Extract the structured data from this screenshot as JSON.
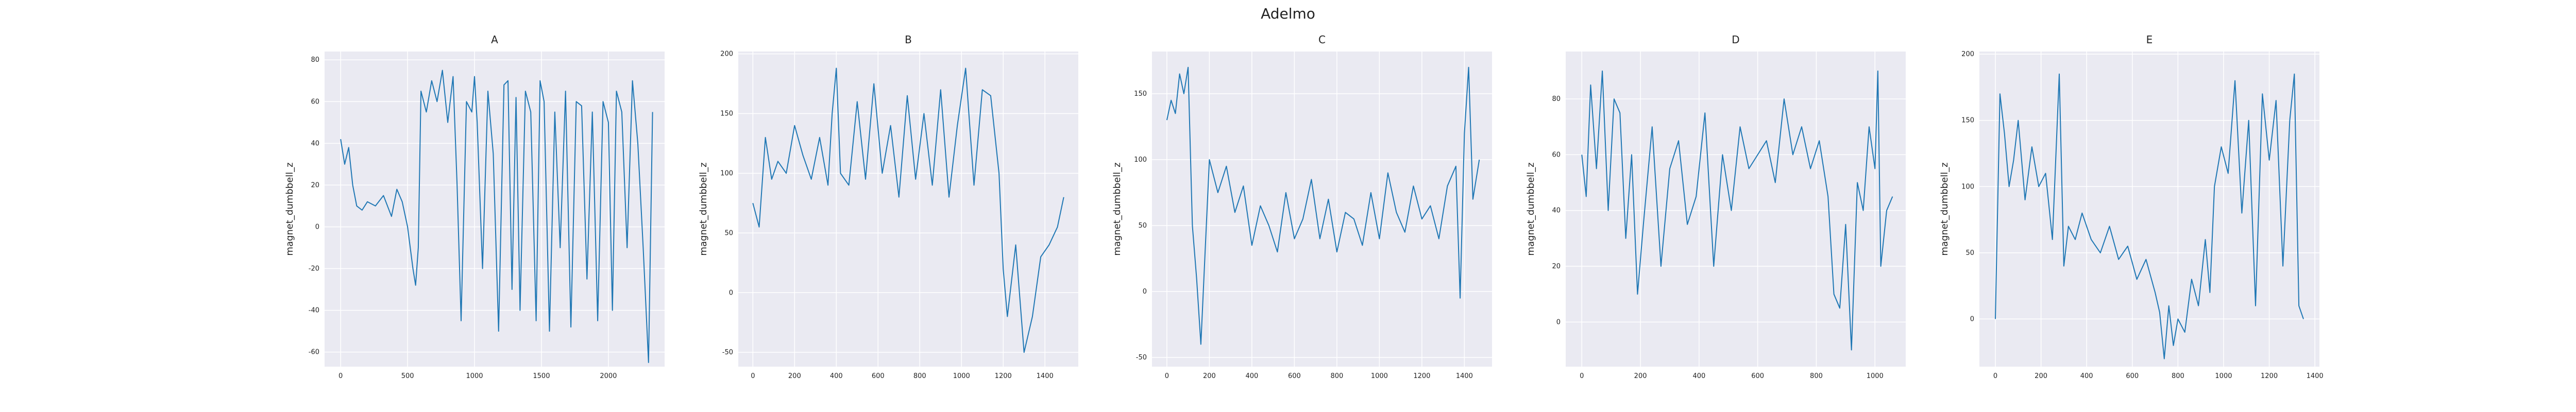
{
  "figure": {
    "suptitle": "Adelmo"
  },
  "style": {
    "plot_bg": "#eaeaf2",
    "grid": "#ffffff",
    "line": "#1f77b4"
  },
  "chart_data": [
    {
      "type": "line",
      "title": "A",
      "xlabel": "",
      "ylabel": "magnet_dumbbell_z",
      "xlim": [
        -120,
        2420
      ],
      "ylim": [
        -67,
        84
      ],
      "xticks": [
        0,
        500,
        1000,
        1500,
        2000
      ],
      "yticks": [
        -60,
        -40,
        -20,
        0,
        20,
        40,
        60,
        80
      ],
      "grid": true,
      "series": [
        {
          "x": [
            0,
            30,
            60,
            90,
            120,
            160,
            200,
            260,
            320,
            380,
            420,
            460,
            500,
            540,
            560,
            580,
            600,
            640,
            680,
            720,
            760,
            800,
            840,
            870,
            900,
            940,
            980,
            1000,
            1020,
            1060,
            1100,
            1140,
            1180,
            1220,
            1250,
            1280,
            1310,
            1340,
            1380,
            1420,
            1460,
            1490,
            1520,
            1560,
            1600,
            1640,
            1680,
            1720,
            1760,
            1800,
            1840,
            1880,
            1920,
            1960,
            2000,
            2030,
            2060,
            2100,
            2140,
            2180,
            2220,
            2260,
            2300,
            2330
          ],
          "y": [
            42,
            30,
            38,
            20,
            10,
            8,
            12,
            10,
            15,
            5,
            18,
            12,
            0,
            -20,
            -28,
            -10,
            65,
            55,
            70,
            60,
            75,
            50,
            72,
            20,
            -45,
            60,
            55,
            72,
            50,
            -20,
            65,
            35,
            -50,
            68,
            70,
            -30,
            62,
            -40,
            65,
            55,
            -45,
            70,
            60,
            -50,
            55,
            -10,
            65,
            -48,
            60,
            58,
            -25,
            55,
            -45,
            60,
            50,
            -40,
            65,
            55,
            -10,
            70,
            40,
            -10,
            -65,
            55
          ]
        }
      ]
    },
    {
      "type": "line",
      "title": "B",
      "xlabel": "",
      "ylabel": "magnet_dumbbell_z",
      "xlim": [
        -70,
        1560
      ],
      "ylim": [
        -62,
        202
      ],
      "xticks": [
        0,
        200,
        400,
        600,
        800,
        1000,
        1200,
        1400
      ],
      "yticks": [
        -50,
        0,
        50,
        100,
        150,
        200
      ],
      "grid": true,
      "series": [
        {
          "x": [
            0,
            30,
            60,
            90,
            120,
            160,
            200,
            240,
            280,
            320,
            360,
            380,
            400,
            420,
            460,
            500,
            540,
            580,
            620,
            660,
            700,
            740,
            780,
            820,
            860,
            900,
            940,
            980,
            1020,
            1060,
            1100,
            1140,
            1180,
            1200,
            1220,
            1260,
            1300,
            1340,
            1380,
            1420,
            1460,
            1490
          ],
          "y": [
            75,
            55,
            130,
            95,
            110,
            100,
            140,
            115,
            95,
            130,
            90,
            150,
            188,
            100,
            90,
            160,
            95,
            175,
            100,
            140,
            80,
            165,
            95,
            150,
            90,
            170,
            80,
            140,
            188,
            90,
            170,
            165,
            100,
            20,
            -20,
            40,
            -50,
            -20,
            30,
            40,
            55,
            80
          ]
        }
      ]
    },
    {
      "type": "line",
      "title": "C",
      "xlabel": "",
      "ylabel": "magnet_dumbbell_z",
      "xlim": [
        -70,
        1530
      ],
      "ylim": [
        -57,
        182
      ],
      "xticks": [
        0,
        200,
        400,
        600,
        800,
        1000,
        1200,
        1400
      ],
      "yticks": [
        -50,
        0,
        50,
        100,
        150
      ],
      "grid": true,
      "series": [
        {
          "x": [
            0,
            20,
            40,
            60,
            80,
            100,
            120,
            140,
            160,
            180,
            200,
            240,
            280,
            320,
            360,
            400,
            440,
            480,
            520,
            560,
            600,
            640,
            680,
            720,
            760,
            800,
            840,
            880,
            920,
            960,
            1000,
            1040,
            1080,
            1120,
            1160,
            1200,
            1240,
            1280,
            1320,
            1360,
            1380,
            1400,
            1420,
            1440,
            1470
          ],
          "y": [
            130,
            145,
            135,
            165,
            150,
            170,
            50,
            10,
            -40,
            30,
            100,
            75,
            95,
            60,
            80,
            35,
            65,
            50,
            30,
            75,
            40,
            55,
            85,
            40,
            70,
            30,
            60,
            55,
            35,
            75,
            40,
            90,
            60,
            45,
            80,
            55,
            65,
            40,
            80,
            95,
            -5,
            120,
            170,
            70,
            100
          ]
        }
      ]
    },
    {
      "type": "line",
      "title": "D",
      "xlabel": "",
      "ylabel": "magnet_dumbbell_z",
      "xlim": [
        -55,
        1105
      ],
      "ylim": [
        -16,
        97
      ],
      "xticks": [
        0,
        200,
        400,
        600,
        800,
        1000
      ],
      "yticks": [
        0,
        20,
        40,
        60,
        80
      ],
      "grid": true,
      "series": [
        {
          "x": [
            0,
            15,
            30,
            50,
            70,
            90,
            110,
            130,
            150,
            170,
            190,
            210,
            240,
            270,
            300,
            330,
            360,
            390,
            420,
            450,
            480,
            510,
            540,
            570,
            600,
            630,
            660,
            690,
            720,
            750,
            780,
            810,
            840,
            860,
            880,
            900,
            920,
            940,
            960,
            980,
            1000,
            1010,
            1020,
            1040,
            1060
          ],
          "y": [
            60,
            45,
            85,
            55,
            90,
            40,
            80,
            75,
            30,
            60,
            10,
            35,
            70,
            20,
            55,
            65,
            35,
            45,
            75,
            20,
            60,
            40,
            70,
            55,
            60,
            65,
            50,
            80,
            60,
            70,
            55,
            65,
            45,
            10,
            5,
            35,
            -10,
            50,
            40,
            70,
            55,
            90,
            20,
            40,
            45
          ]
        }
      ]
    },
    {
      "type": "line",
      "title": "E",
      "xlabel": "",
      "ylabel": "magnet_dumbbell_z",
      "xlim": [
        -70,
        1420
      ],
      "ylim": [
        -36,
        202
      ],
      "xticks": [
        0,
        200,
        400,
        600,
        800,
        1000,
        1200,
        1400
      ],
      "yticks": [
        0,
        50,
        100,
        150,
        200
      ],
      "grid": true,
      "series": [
        {
          "x": [
            0,
            20,
            40,
            60,
            80,
            100,
            130,
            160,
            190,
            220,
            250,
            280,
            300,
            320,
            350,
            380,
            420,
            460,
            500,
            540,
            580,
            620,
            660,
            700,
            720,
            740,
            760,
            780,
            800,
            830,
            860,
            890,
            920,
            940,
            960,
            990,
            1020,
            1050,
            1080,
            1110,
            1140,
            1170,
            1200,
            1230,
            1260,
            1290,
            1310,
            1330,
            1350
          ],
          "y": [
            0,
            170,
            140,
            100,
            120,
            150,
            90,
            130,
            100,
            110,
            60,
            185,
            40,
            70,
            60,
            80,
            60,
            50,
            70,
            45,
            55,
            30,
            45,
            20,
            5,
            -30,
            10,
            -20,
            0,
            -10,
            30,
            10,
            60,
            20,
            100,
            130,
            110,
            180,
            80,
            150,
            10,
            170,
            120,
            165,
            40,
            150,
            185,
            10,
            0
          ]
        }
      ]
    }
  ]
}
